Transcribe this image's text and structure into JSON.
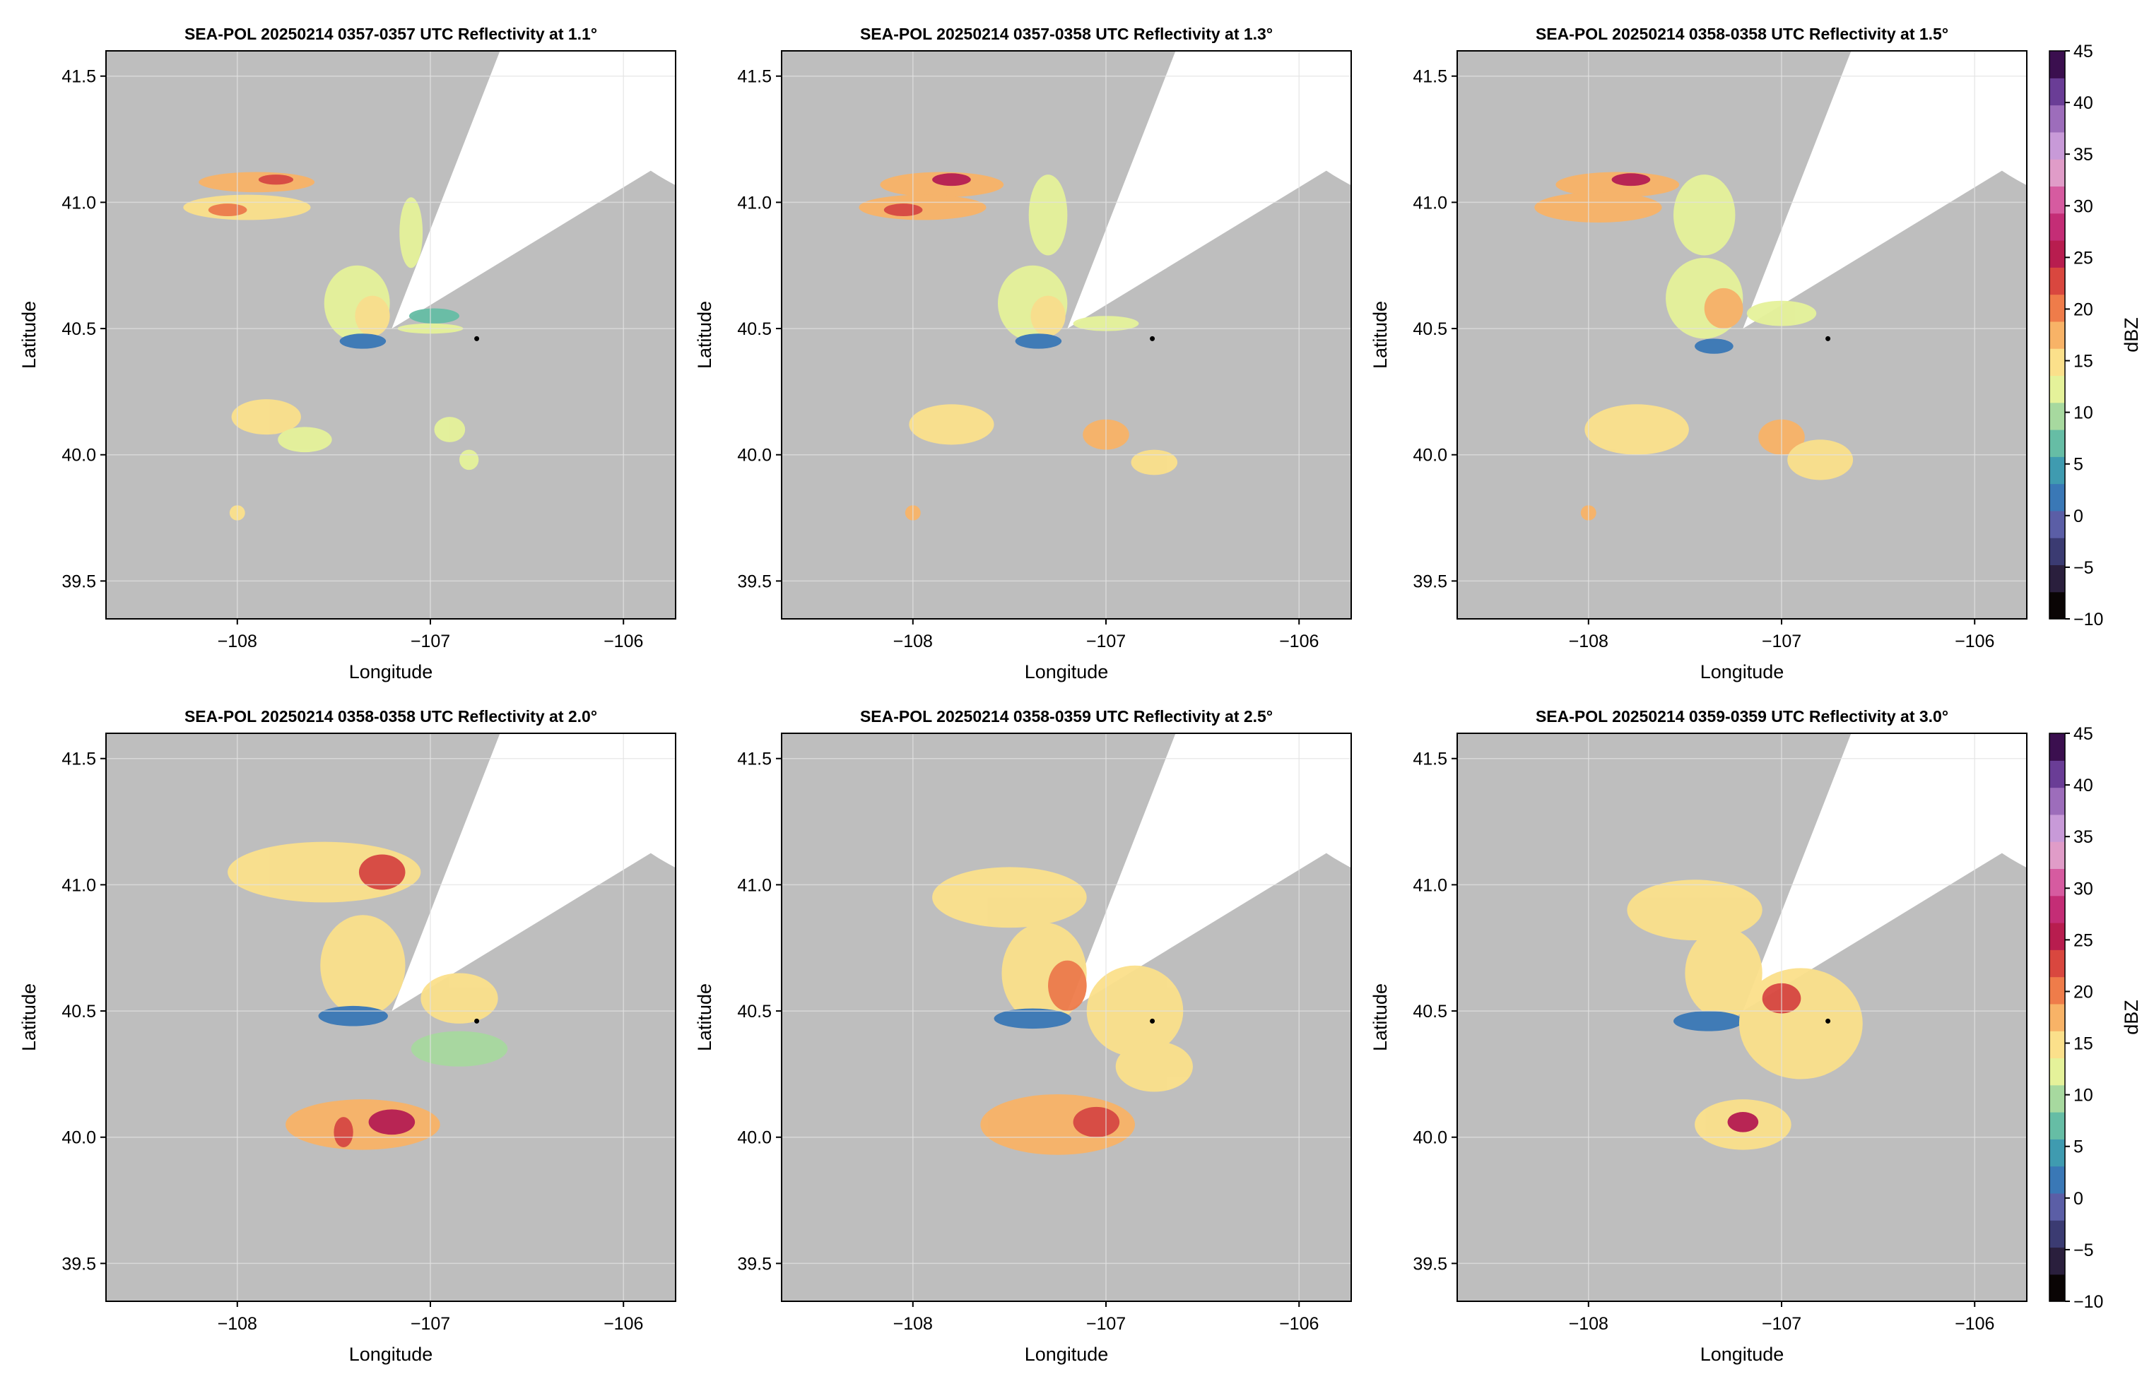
{
  "figure": {
    "xlabel": "Longitude",
    "ylabel": "Latitude",
    "colorbar_label": "dBZ"
  },
  "colors": {
    "no_data_sector": "#bebebe",
    "radar_coverage": "#ffffff",
    "grid": "#e3e3e3",
    "radar_site_marker": "#000000"
  },
  "colorbar": {
    "min": -10,
    "max": 45,
    "ticks": [
      "45",
      "40",
      "35",
      "30",
      "25",
      "20",
      "15",
      "10",
      "5",
      "0",
      "−5",
      "−10"
    ],
    "colors": [
      "#0a0505",
      "#2a1f3d",
      "#3b3b72",
      "#5b5ea6",
      "#3a78b6",
      "#3f9bb0",
      "#66bda5",
      "#a7d99f",
      "#e5f29a",
      "#fbe08b",
      "#f8b367",
      "#ef7c4a",
      "#d9473f",
      "#b81d4f",
      "#c42d76",
      "#d65ba0",
      "#e09cc8",
      "#c89ad8",
      "#9d6dbb",
      "#6a3d96",
      "#3b0f4f"
    ]
  },
  "chart_data": [
    {
      "type": "heatmap",
      "title": "SEA-POL 20250214 0357-0357 UTC Reflectivity at 1.1°",
      "xlabel": "Longitude",
      "ylabel": "Latitude",
      "xticks": [
        "−108",
        "−107",
        "−106"
      ],
      "yticks": [
        "41.5",
        "41.0",
        "40.5",
        "40.0",
        "39.5"
      ],
      "xlim": [
        -108.68,
        -105.73
      ],
      "ylim": [
        39.35,
        41.6
      ],
      "grid": true,
      "radar_site": {
        "lon": -107.2,
        "lat": 40.5
      },
      "marker": {
        "lon": -106.76,
        "lat": 40.46
      },
      "max_range_deg": 1.48,
      "blocked_sector_deg": [
        25,
        63
      ],
      "colorbar": false,
      "echo_cells": [
        {
          "lon": -107.9,
          "lat": 41.08,
          "rlon": 0.3,
          "rlat": 0.04,
          "dbz": 17
        },
        {
          "lon": -107.8,
          "lat": 41.09,
          "rlon": 0.09,
          "rlat": 0.02,
          "dbz": 24
        },
        {
          "lon": -107.95,
          "lat": 40.98,
          "rlon": 0.33,
          "rlat": 0.05,
          "dbz": 16
        },
        {
          "lon": -108.05,
          "lat": 40.97,
          "rlon": 0.1,
          "rlat": 0.025,
          "dbz": 21
        },
        {
          "lon": -107.38,
          "lat": 40.6,
          "rlon": 0.17,
          "rlat": 0.15,
          "dbz": 11
        },
        {
          "lon": -107.3,
          "lat": 40.55,
          "rlon": 0.09,
          "rlat": 0.08,
          "dbz": 15
        },
        {
          "lon": -107.35,
          "lat": 40.45,
          "rlon": 0.12,
          "rlat": 0.03,
          "dbz": 2
        },
        {
          "lon": -106.98,
          "lat": 40.55,
          "rlon": 0.13,
          "rlat": 0.03,
          "dbz": 6
        },
        {
          "lon": -107.0,
          "lat": 40.5,
          "rlon": 0.17,
          "rlat": 0.02,
          "dbz": 11
        },
        {
          "lon": -107.85,
          "lat": 40.15,
          "rlon": 0.18,
          "rlat": 0.07,
          "dbz": 14
        },
        {
          "lon": -107.65,
          "lat": 40.06,
          "rlon": 0.14,
          "rlat": 0.05,
          "dbz": 12
        },
        {
          "lon": -106.9,
          "lat": 40.1,
          "rlon": 0.08,
          "rlat": 0.05,
          "dbz": 12
        },
        {
          "lon": -107.1,
          "lat": 40.88,
          "rlon": 0.06,
          "rlat": 0.14,
          "dbz": 12
        },
        {
          "lon": -108.0,
          "lat": 39.77,
          "rlon": 0.04,
          "rlat": 0.03,
          "dbz": 16
        },
        {
          "lon": -106.8,
          "lat": 39.98,
          "rlon": 0.05,
          "rlat": 0.04,
          "dbz": 11
        }
      ]
    },
    {
      "type": "heatmap",
      "title": "SEA-POL 20250214 0357-0358 UTC Reflectivity at 1.3°",
      "xlabel": "Longitude",
      "ylabel": "Latitude",
      "xticks": [
        "−108",
        "−107",
        "−106"
      ],
      "yticks": [
        "41.5",
        "41.0",
        "40.5",
        "40.0",
        "39.5"
      ],
      "xlim": [
        -108.68,
        -105.73
      ],
      "ylim": [
        39.35,
        41.6
      ],
      "grid": true,
      "radar_site": {
        "lon": -107.2,
        "lat": 40.5
      },
      "marker": {
        "lon": -106.76,
        "lat": 40.46
      },
      "max_range_deg": 1.48,
      "blocked_sector_deg": [
        25,
        63
      ],
      "colorbar": false,
      "echo_cells": [
        {
          "lon": -107.85,
          "lat": 41.07,
          "rlon": 0.32,
          "rlat": 0.05,
          "dbz": 18
        },
        {
          "lon": -107.8,
          "lat": 41.09,
          "rlon": 0.1,
          "rlat": 0.025,
          "dbz": 25
        },
        {
          "lon": -107.95,
          "lat": 40.98,
          "rlon": 0.33,
          "rlat": 0.05,
          "dbz": 17
        },
        {
          "lon": -108.05,
          "lat": 40.97,
          "rlon": 0.1,
          "rlat": 0.025,
          "dbz": 22
        },
        {
          "lon": -107.3,
          "lat": 40.95,
          "rlon": 0.1,
          "rlat": 0.16,
          "dbz": 13
        },
        {
          "lon": -107.38,
          "lat": 40.6,
          "rlon": 0.18,
          "rlat": 0.15,
          "dbz": 12
        },
        {
          "lon": -107.3,
          "lat": 40.55,
          "rlon": 0.09,
          "rlat": 0.08,
          "dbz": 16
        },
        {
          "lon": -107.35,
          "lat": 40.45,
          "rlon": 0.12,
          "rlat": 0.03,
          "dbz": 2
        },
        {
          "lon": -107.0,
          "lat": 40.52,
          "rlon": 0.17,
          "rlat": 0.03,
          "dbz": 11
        },
        {
          "lon": -107.8,
          "lat": 40.12,
          "rlon": 0.22,
          "rlat": 0.08,
          "dbz": 15
        },
        {
          "lon": -107.0,
          "lat": 40.08,
          "rlon": 0.12,
          "rlat": 0.06,
          "dbz": 18
        },
        {
          "lon": -106.75,
          "lat": 39.97,
          "rlon": 0.12,
          "rlat": 0.05,
          "dbz": 14
        },
        {
          "lon": -108.0,
          "lat": 39.77,
          "rlon": 0.04,
          "rlat": 0.03,
          "dbz": 17
        }
      ]
    },
    {
      "type": "heatmap",
      "title": "SEA-POL 20250214 0358-0358 UTC Reflectivity at 1.5°",
      "xlabel": "Longitude",
      "ylabel": "Latitude",
      "xticks": [
        "−108",
        "−107",
        "−106"
      ],
      "yticks": [
        "41.5",
        "41.0",
        "40.5",
        "40.0",
        "39.5"
      ],
      "xlim": [
        -108.68,
        -105.73
      ],
      "ylim": [
        39.35,
        41.6
      ],
      "grid": true,
      "radar_site": {
        "lon": -107.2,
        "lat": 40.5
      },
      "marker": {
        "lon": -106.76,
        "lat": 40.46
      },
      "max_range_deg": 1.48,
      "blocked_sector_deg": [
        25,
        63
      ],
      "colorbar": true,
      "echo_cells": [
        {
          "lon": -107.85,
          "lat": 41.07,
          "rlon": 0.32,
          "rlat": 0.05,
          "dbz": 18
        },
        {
          "lon": -107.78,
          "lat": 41.09,
          "rlon": 0.1,
          "rlat": 0.025,
          "dbz": 25
        },
        {
          "lon": -107.95,
          "lat": 40.98,
          "rlon": 0.33,
          "rlat": 0.06,
          "dbz": 17
        },
        {
          "lon": -107.4,
          "lat": 40.95,
          "rlon": 0.16,
          "rlat": 0.16,
          "dbz": 13
        },
        {
          "lon": -107.4,
          "lat": 40.62,
          "rlon": 0.2,
          "rlat": 0.16,
          "dbz": 13
        },
        {
          "lon": -107.3,
          "lat": 40.58,
          "rlon": 0.1,
          "rlat": 0.08,
          "dbz": 17
        },
        {
          "lon": -107.35,
          "lat": 40.43,
          "rlon": 0.1,
          "rlat": 0.03,
          "dbz": 2
        },
        {
          "lon": -107.0,
          "lat": 40.56,
          "rlon": 0.18,
          "rlat": 0.05,
          "dbz": 13
        },
        {
          "lon": -107.75,
          "lat": 40.1,
          "rlon": 0.27,
          "rlat": 0.1,
          "dbz": 15
        },
        {
          "lon": -107.0,
          "lat": 40.07,
          "rlon": 0.12,
          "rlat": 0.07,
          "dbz": 17
        },
        {
          "lon": -106.8,
          "lat": 39.98,
          "rlon": 0.17,
          "rlat": 0.08,
          "dbz": 14
        },
        {
          "lon": -108.0,
          "lat": 39.77,
          "rlon": 0.04,
          "rlat": 0.03,
          "dbz": 17
        }
      ]
    },
    {
      "type": "heatmap",
      "title": "SEA-POL 20250214 0358-0358 UTC Reflectivity at 2.0°",
      "xlabel": "Longitude",
      "ylabel": "Latitude",
      "xticks": [
        "−108",
        "−107",
        "−106"
      ],
      "yticks": [
        "41.5",
        "41.0",
        "40.5",
        "40.0",
        "39.5"
      ],
      "xlim": [
        -108.68,
        -105.73
      ],
      "ylim": [
        39.35,
        41.6
      ],
      "grid": true,
      "radar_site": {
        "lon": -107.2,
        "lat": 40.5
      },
      "marker": {
        "lon": -106.76,
        "lat": 40.46
      },
      "max_range_deg": 1.48,
      "blocked_sector_deg": [
        25,
        63
      ],
      "colorbar": false,
      "echo_cells": [
        {
          "lon": -107.55,
          "lat": 41.05,
          "rlon": 0.5,
          "rlat": 0.12,
          "dbz": 16
        },
        {
          "lon": -107.25,
          "lat": 41.05,
          "rlon": 0.12,
          "rlat": 0.07,
          "dbz": 22
        },
        {
          "lon": -107.35,
          "lat": 40.68,
          "rlon": 0.22,
          "rlat": 0.2,
          "dbz": 15
        },
        {
          "lon": -107.4,
          "lat": 40.48,
          "rlon": 0.18,
          "rlat": 0.04,
          "dbz": 2
        },
        {
          "lon": -106.85,
          "lat": 40.55,
          "rlon": 0.2,
          "rlat": 0.1,
          "dbz": 15
        },
        {
          "lon": -106.85,
          "lat": 40.35,
          "rlon": 0.25,
          "rlat": 0.07,
          "dbz": 10
        },
        {
          "lon": -107.35,
          "lat": 40.05,
          "rlon": 0.4,
          "rlat": 0.1,
          "dbz": 17
        },
        {
          "lon": -107.2,
          "lat": 40.06,
          "rlon": 0.12,
          "rlat": 0.05,
          "dbz": 25
        },
        {
          "lon": -107.45,
          "lat": 40.02,
          "rlon": 0.05,
          "rlat": 0.06,
          "dbz": 23
        }
      ]
    },
    {
      "type": "heatmap",
      "title": "SEA-POL 20250214 0358-0359 UTC Reflectivity at 2.5°",
      "xlabel": "Longitude",
      "ylabel": "Latitude",
      "xticks": [
        "−108",
        "−107",
        "−106"
      ],
      "yticks": [
        "41.5",
        "41.0",
        "40.5",
        "40.0",
        "39.5"
      ],
      "xlim": [
        -108.68,
        -105.73
      ],
      "ylim": [
        39.35,
        41.6
      ],
      "grid": true,
      "radar_site": {
        "lon": -107.2,
        "lat": 40.5
      },
      "marker": {
        "lon": -106.76,
        "lat": 40.46
      },
      "max_range_deg": 1.48,
      "blocked_sector_deg": [
        25,
        63
      ],
      "colorbar": false,
      "echo_cells": [
        {
          "lon": -107.5,
          "lat": 40.95,
          "rlon": 0.4,
          "rlat": 0.12,
          "dbz": 15
        },
        {
          "lon": -107.32,
          "lat": 40.65,
          "rlon": 0.22,
          "rlat": 0.2,
          "dbz": 14
        },
        {
          "lon": -107.2,
          "lat": 40.6,
          "rlon": 0.1,
          "rlat": 0.1,
          "dbz": 19
        },
        {
          "lon": -107.38,
          "lat": 40.47,
          "rlon": 0.2,
          "rlat": 0.04,
          "dbz": 2
        },
        {
          "lon": -106.85,
          "lat": 40.5,
          "rlon": 0.25,
          "rlat": 0.18,
          "dbz": 15
        },
        {
          "lon": -106.75,
          "lat": 40.28,
          "rlon": 0.2,
          "rlat": 0.1,
          "dbz": 14
        },
        {
          "lon": -107.25,
          "lat": 40.05,
          "rlon": 0.4,
          "rlat": 0.12,
          "dbz": 17
        },
        {
          "lon": -107.05,
          "lat": 40.06,
          "rlon": 0.12,
          "rlat": 0.06,
          "dbz": 24
        }
      ]
    },
    {
      "type": "heatmap",
      "title": "SEA-POL 20250214 0359-0359 UTC Reflectivity at 3.0°",
      "xlabel": "Longitude",
      "ylabel": "Latitude",
      "xticks": [
        "−108",
        "−107",
        "−106"
      ],
      "yticks": [
        "41.5",
        "41.0",
        "40.5",
        "40.0",
        "39.5"
      ],
      "xlim": [
        -108.68,
        -105.73
      ],
      "ylim": [
        39.35,
        41.6
      ],
      "grid": true,
      "radar_site": {
        "lon": -107.2,
        "lat": 40.5
      },
      "marker": {
        "lon": -106.76,
        "lat": 40.46
      },
      "max_range_deg": 1.48,
      "blocked_sector_deg": [
        25,
        63
      ],
      "colorbar": true,
      "echo_cells": [
        {
          "lon": -107.45,
          "lat": 40.9,
          "rlon": 0.35,
          "rlat": 0.12,
          "dbz": 14
        },
        {
          "lon": -107.3,
          "lat": 40.65,
          "rlon": 0.2,
          "rlat": 0.18,
          "dbz": 14
        },
        {
          "lon": -107.38,
          "lat": 40.46,
          "rlon": 0.18,
          "rlat": 0.04,
          "dbz": 2
        },
        {
          "lon": -106.9,
          "lat": 40.45,
          "rlon": 0.32,
          "rlat": 0.22,
          "dbz": 16
        },
        {
          "lon": -107.0,
          "lat": 40.55,
          "rlon": 0.1,
          "rlat": 0.06,
          "dbz": 22
        },
        {
          "lon": -107.2,
          "lat": 40.05,
          "rlon": 0.25,
          "rlat": 0.1,
          "dbz": 16
        },
        {
          "lon": -107.2,
          "lat": 40.06,
          "rlon": 0.08,
          "rlat": 0.04,
          "dbz": 25
        }
      ]
    }
  ]
}
